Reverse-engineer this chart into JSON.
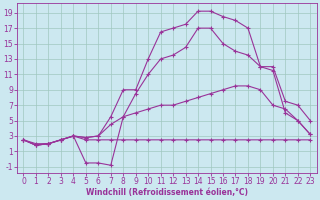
{
  "xlabel": "Windchill (Refroidissement éolien,°C)",
  "bg_color": "#cce8f0",
  "grid_color": "#a0c8c0",
  "line_color": "#993399",
  "xlim": [
    -0.5,
    23.5
  ],
  "ylim": [
    -1.8,
    20.2
  ],
  "xticks": [
    0,
    1,
    2,
    3,
    4,
    5,
    6,
    7,
    8,
    9,
    10,
    11,
    12,
    13,
    14,
    15,
    16,
    17,
    18,
    19,
    20,
    21,
    22,
    23
  ],
  "yticks": [
    -1,
    1,
    3,
    5,
    7,
    9,
    11,
    13,
    15,
    17,
    19
  ],
  "line1_x": [
    0,
    1,
    2,
    3,
    4,
    5,
    6,
    7,
    8,
    9,
    10,
    11,
    12,
    13,
    14,
    15,
    16,
    17,
    18,
    19,
    20,
    21,
    22,
    23
  ],
  "line1_y": [
    2.5,
    2.0,
    2.0,
    2.5,
    3.0,
    2.5,
    2.5,
    2.5,
    2.5,
    2.5,
    2.5,
    2.5,
    2.5,
    2.5,
    2.5,
    2.5,
    2.5,
    2.5,
    2.5,
    2.5,
    2.5,
    2.5,
    2.5,
    2.5
  ],
  "line2_x": [
    0,
    1,
    2,
    3,
    4,
    5,
    6,
    7,
    8,
    9,
    10,
    11,
    12,
    13,
    14,
    15,
    16,
    17,
    18,
    19,
    20,
    21,
    22,
    23
  ],
  "line2_y": [
    2.5,
    1.8,
    2.0,
    2.5,
    3.0,
    -0.5,
    -0.5,
    -0.8,
    5.5,
    6.0,
    6.5,
    7.0,
    7.0,
    7.5,
    8.0,
    8.5,
    9.0,
    9.5,
    9.5,
    9.0,
    7.0,
    6.5,
    5.0,
    3.2
  ],
  "line3_x": [
    0,
    1,
    2,
    3,
    4,
    5,
    6,
    7,
    8,
    9,
    10,
    11,
    12,
    13,
    14,
    15,
    16,
    17,
    18,
    19,
    20,
    21,
    22,
    23
  ],
  "line3_y": [
    2.5,
    1.8,
    2.0,
    2.5,
    3.0,
    2.8,
    3.0,
    5.5,
    9.0,
    9.0,
    13.0,
    16.5,
    17.0,
    17.5,
    19.2,
    19.2,
    18.5,
    18.0,
    17.0,
    12.0,
    12.0,
    7.5,
    7.0,
    5.0
  ],
  "line4_x": [
    0,
    1,
    2,
    3,
    4,
    5,
    6,
    7,
    8,
    9,
    10,
    11,
    12,
    13,
    14,
    15,
    16,
    17,
    18,
    19,
    20,
    21,
    22,
    23
  ],
  "line4_y": [
    2.5,
    1.8,
    2.0,
    2.5,
    3.0,
    2.8,
    3.0,
    4.5,
    5.5,
    8.5,
    11.0,
    13.0,
    13.5,
    14.5,
    17.0,
    17.0,
    15.0,
    14.0,
    13.5,
    12.0,
    11.5,
    6.0,
    5.0,
    3.2
  ],
  "marker": "+",
  "markersize": 3,
  "linewidth": 0.8,
  "tick_fontsize": 5.5,
  "xlabel_fontsize": 5.5
}
